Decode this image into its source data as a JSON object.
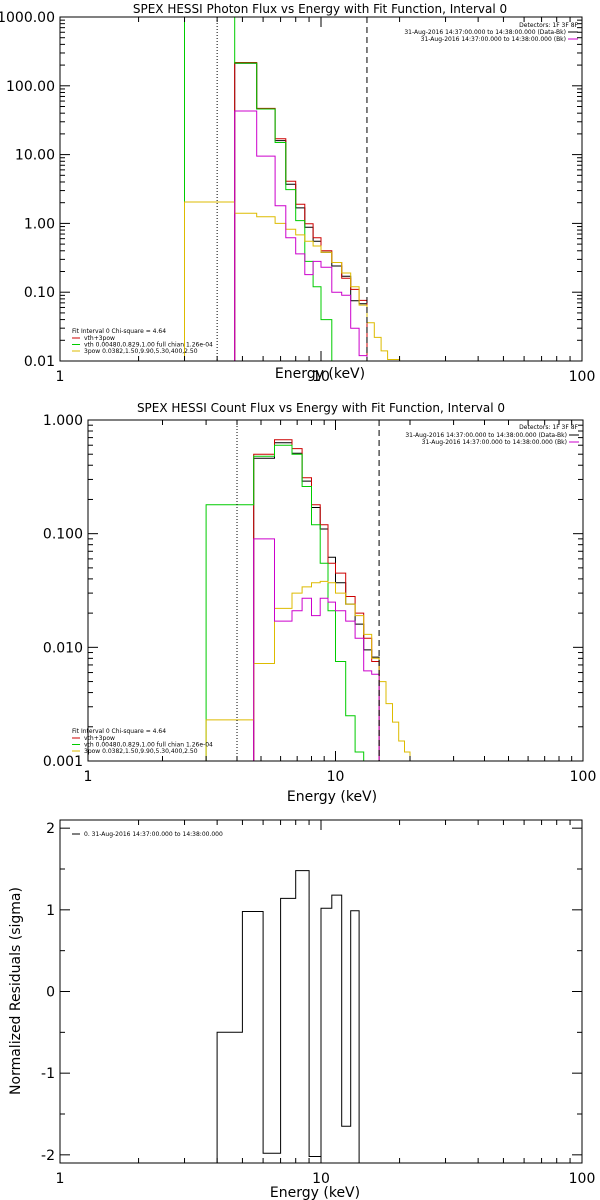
{
  "chart_data": [
    {
      "id": "photon",
      "type": "line",
      "title": "SPEX HESSI Photon Flux vs Energy with Fit Function, Interval 0",
      "xlabel": "Energy (keV)",
      "ylabel": "",
      "xscale": "log",
      "yscale": "log",
      "xlim": [
        1,
        100
      ],
      "ylim": [
        0.01,
        1000
      ],
      "x_ticks": [
        1,
        10,
        100
      ],
      "x_tick_labels": [
        "1",
        "10",
        "100"
      ],
      "y_ticks": [
        0.01,
        0.1,
        1,
        10,
        100,
        1000
      ],
      "y_tick_labels": [
        "0.01",
        "0.10",
        "1.00",
        "10.00",
        "100.00",
        "1000.00"
      ],
      "vlines": [
        {
          "x": 4.0,
          "style": "dotted"
        },
        {
          "x": 15.0,
          "style": "dashed"
        }
      ],
      "header": {
        "detectors": "Detectors: 1F 3F 8F",
        "lines": [
          {
            "text": "31-Aug-2016 14:37:00.000 to 14:38:00.000 (Data-Bk)",
            "color": "#000000"
          },
          {
            "text": "31-Aug-2016 14:37:00.000 to 14:38:00.000 (Bk)",
            "color": "#cc00cc"
          }
        ]
      },
      "legend": {
        "title": "Fit Interval 0   Chi-square = 4.64",
        "entries": [
          {
            "label": "vth+3pow",
            "color": "#cc0000"
          },
          {
            "label": "vth 0.00480,0.829,1.00  full chian 1.26e-04",
            "color": "#00cc00"
          },
          {
            "label": "3pow 0.0382,1.50,9.90,5.30,400,2.50",
            "color": "#ddbb00"
          }
        ]
      },
      "edges": [
        3.0,
        3.33,
        3.67,
        4.0,
        4.33,
        4.67,
        5.0,
        5.33,
        5.67,
        6.0,
        6.33,
        6.67,
        7.0,
        7.33,
        7.67,
        8.0,
        8.33,
        8.67,
        9.0,
        9.33,
        9.67,
        10.0,
        10.5,
        11.0,
        11.5,
        12.0,
        12.5,
        13.0,
        13.5,
        14.0,
        14.5,
        15.0,
        16.0,
        17.0,
        18.0,
        19.0,
        20.0,
        21.0
      ],
      "series": [
        {
          "key": "data",
          "color": "#000000",
          "values": [
            null,
            null,
            null,
            null,
            null,
            212,
            212,
            212,
            46,
            46,
            46,
            16,
            16,
            3.7,
            3.7,
            1.68,
            1.68,
            0.88,
            0.88,
            0.55,
            0.55,
            0.38,
            0.38,
            0.24,
            0.24,
            0.17,
            0.17,
            0.075,
            0.075,
            0.068,
            0.068,
            null,
            null,
            null,
            null,
            null,
            null
          ]
        },
        {
          "key": "total",
          "color": "#cc0000",
          "values": [
            null,
            null,
            null,
            null,
            null,
            218,
            218,
            218,
            47,
            47,
            47,
            17,
            17,
            4.1,
            4.1,
            1.9,
            1.9,
            0.99,
            0.99,
            0.62,
            0.62,
            0.4,
            0.4,
            0.27,
            0.27,
            0.16,
            0.16,
            0.11,
            0.11,
            0.076,
            0.076,
            null,
            null,
            null,
            null,
            null,
            null
          ]
        },
        {
          "key": "vth",
          "color": "#00cc00",
          "values": [
            1000,
            1000,
            1000,
            1000,
            1000,
            214,
            214,
            214,
            46,
            46,
            46,
            15,
            15,
            3.1,
            3.1,
            1.1,
            1.1,
            0.28,
            0.28,
            0.12,
            0.12,
            0.04,
            0.04,
            0.01,
            0.01,
            null,
            null,
            null,
            null,
            null,
            null,
            null,
            null,
            null,
            null,
            null,
            null
          ]
        },
        {
          "key": "pow",
          "color": "#ddbb00",
          "values": [
            2.05,
            2.05,
            2.05,
            2.05,
            2.05,
            1.4,
            1.4,
            1.4,
            1.25,
            1.25,
            1.25,
            1.0,
            1.0,
            0.82,
            0.82,
            0.68,
            0.68,
            0.55,
            0.55,
            0.47,
            0.47,
            0.38,
            0.38,
            0.27,
            0.27,
            0.19,
            0.19,
            0.12,
            0.12,
            0.065,
            0.065,
            0.036,
            0.022,
            0.014,
            0.0105,
            0.0105,
            null
          ]
        },
        {
          "key": "bk",
          "color": "#cc00cc",
          "values": [
            null,
            null,
            null,
            null,
            null,
            43,
            43,
            43,
            9.5,
            9.5,
            9.5,
            1.8,
            1.8,
            0.62,
            0.62,
            0.36,
            0.36,
            0.18,
            0.18,
            0.28,
            0.28,
            0.23,
            0.23,
            0.1,
            0.1,
            0.09,
            0.09,
            0.03,
            0.03,
            0.012,
            0.012,
            null,
            null,
            null,
            null,
            null,
            null
          ]
        }
      ]
    },
    {
      "id": "count",
      "type": "line",
      "title": "SPEX HESSI Count Flux vs Energy with Fit Function, Interval 0",
      "xlabel": "Energy (keV)",
      "ylabel": "",
      "xscale": "log",
      "yscale": "log",
      "xlim": [
        1,
        100
      ],
      "ylim": [
        0.001,
        1
      ],
      "x_ticks": [
        1,
        10,
        100
      ],
      "x_tick_labels": [
        "1",
        "10",
        "100"
      ],
      "y_ticks": [
        0.001,
        0.01,
        0.1,
        1
      ],
      "y_tick_labels": [
        "0.001",
        "0.010",
        "0.100",
        "1.000"
      ],
      "vlines": [
        {
          "x": 4.0,
          "style": "dotted"
        },
        {
          "x": 15.0,
          "style": "dashed"
        }
      ],
      "header": {
        "detectors": "Detectors: 1F 3F 8F",
        "lines": [
          {
            "text": "31-Aug-2016 14:37:00.000 to 14:38:00.000 (Data-Bk)",
            "color": "#000000"
          },
          {
            "text": "31-Aug-2016 14:37:00.000 to 14:38:00.000 (Bk)",
            "color": "#cc00cc"
          }
        ]
      },
      "legend": {
        "title": "Fit Interval 0   Chi-square = 4.64",
        "entries": [
          {
            "label": "vth+3pow",
            "color": "#cc0000"
          },
          {
            "label": "vth 0.00480,0.829,1.00  full chian 1.26e-04",
            "color": "#00cc00"
          },
          {
            "label": "3pow 0.0382,1.50,9.90,5.30,400,2.50",
            "color": "#ddbb00"
          }
        ]
      },
      "edges": [
        3.0,
        3.33,
        3.67,
        4.0,
        4.33,
        4.67,
        5.0,
        5.33,
        5.67,
        6.0,
        6.33,
        6.67,
        7.0,
        7.33,
        7.67,
        8.0,
        8.33,
        8.67,
        9.0,
        9.33,
        9.67,
        10.0,
        10.5,
        11.0,
        11.5,
        12.0,
        12.5,
        13.0,
        13.5,
        14.0,
        14.5,
        15.0,
        16.0,
        17.0,
        18.0,
        19.0,
        20.0,
        21.0
      ],
      "series": [
        {
          "key": "data",
          "color": "#000000",
          "values": [
            null,
            null,
            null,
            null,
            null,
            0.46,
            0.46,
            0.46,
            0.63,
            0.63,
            0.63,
            0.51,
            0.51,
            0.29,
            0.29,
            0.17,
            0.17,
            0.11,
            0.11,
            0.062,
            0.062,
            0.037,
            0.037,
            0.024,
            0.024,
            0.016,
            0.016,
            0.0095,
            0.0095,
            0.0082,
            0.0082,
            null,
            null,
            null,
            null,
            null,
            null
          ]
        },
        {
          "key": "total",
          "color": "#cc0000",
          "values": [
            null,
            null,
            null,
            null,
            null,
            0.5,
            0.5,
            0.5,
            0.67,
            0.67,
            0.67,
            0.56,
            0.56,
            0.31,
            0.31,
            0.18,
            0.18,
            0.12,
            0.12,
            0.055,
            0.055,
            0.045,
            0.045,
            0.028,
            0.028,
            0.02,
            0.02,
            0.012,
            0.012,
            0.0075,
            0.0075,
            null,
            null,
            null,
            null,
            null,
            null
          ]
        },
        {
          "key": "vth",
          "color": "#00cc00",
          "values": [
            0.18,
            0.18,
            0.18,
            0.18,
            0.18,
            0.48,
            0.48,
            0.48,
            0.6,
            0.6,
            0.6,
            0.5,
            0.5,
            0.26,
            0.26,
            0.12,
            0.12,
            0.055,
            0.055,
            0.021,
            0.021,
            0.0075,
            0.0075,
            0.0025,
            0.0025,
            0.0012,
            0.0012,
            null,
            null,
            null,
            null,
            null,
            null,
            null,
            null,
            null,
            null
          ]
        },
        {
          "key": "pow",
          "color": "#ddbb00",
          "values": [
            0.0023,
            0.0023,
            0.0023,
            0.0023,
            0.0023,
            0.0072,
            0.0072,
            0.0072,
            0.022,
            0.022,
            0.022,
            0.03,
            0.03,
            0.034,
            0.034,
            0.037,
            0.037,
            0.038,
            0.038,
            0.037,
            0.037,
            0.03,
            0.03,
            0.024,
            0.024,
            0.019,
            0.019,
            0.013,
            0.013,
            0.008,
            0.008,
            0.005,
            0.0032,
            0.0022,
            0.0015,
            0.0012,
            null
          ]
        },
        {
          "key": "bk",
          "color": "#cc00cc",
          "values": [
            null,
            null,
            null,
            null,
            null,
            0.09,
            0.09,
            0.09,
            0.017,
            0.017,
            0.017,
            0.021,
            0.021,
            0.027,
            0.027,
            0.019,
            0.019,
            0.027,
            0.027,
            0.025,
            0.025,
            0.021,
            0.021,
            0.017,
            0.017,
            0.012,
            0.012,
            0.0062,
            0.0062,
            0.0058,
            0.0058,
            null,
            null,
            null,
            null,
            null,
            null
          ]
        }
      ]
    },
    {
      "id": "residuals",
      "type": "line",
      "title": "",
      "xlabel": "Energy (keV)",
      "ylabel": "Normalized Residuals (sigma)",
      "xscale": "log",
      "yscale": "linear",
      "xlim": [
        1,
        100
      ],
      "ylim": [
        -2.1,
        2.1
      ],
      "x_ticks": [
        1,
        10,
        100
      ],
      "x_tick_labels": [
        "1",
        "10",
        "100"
      ],
      "y_ticks": [
        -2,
        -1,
        0,
        1,
        2
      ],
      "y_tick_labels": [
        "-2",
        "-1",
        "0",
        "1",
        "2"
      ],
      "legend": {
        "title": "",
        "entries": [
          {
            "label": "0. 31-Aug-2016 14:37:00.000 to 14:38:00.000",
            "color": "#000000"
          }
        ]
      },
      "edges": [
        4.0,
        5.0,
        6.0,
        7.0,
        8.0,
        9.0,
        10.0,
        11.0,
        12.0,
        13.0,
        14.0,
        15.0
      ],
      "series": [
        {
          "key": "resid",
          "color": "#000000",
          "values": [
            -0.5,
            0.98,
            -1.98,
            1.14,
            1.48,
            -2.02,
            1.02,
            1.18,
            -1.65,
            0.99,
            null
          ]
        }
      ]
    }
  ]
}
